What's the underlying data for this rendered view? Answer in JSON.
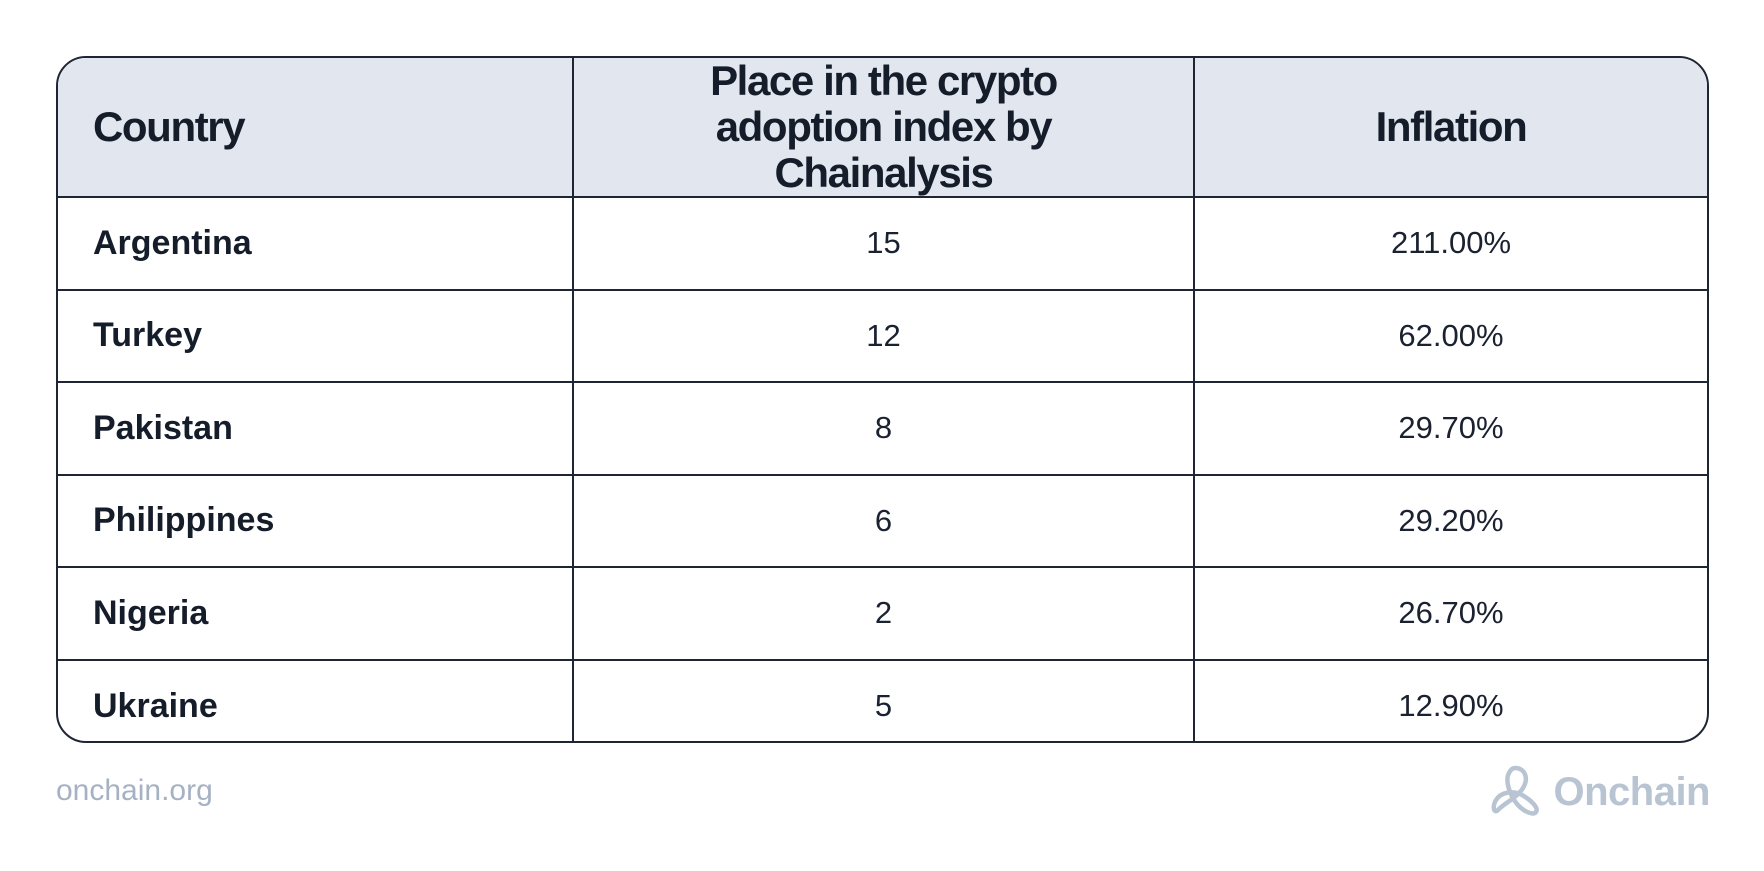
{
  "chart_data": {
    "type": "table",
    "columns": [
      "Country",
      "Place in the crypto adoption index by Chainalysis",
      "Inflation"
    ],
    "rows": [
      {
        "country": "Argentina",
        "place": "15",
        "inflation": "211.00%"
      },
      {
        "country": "Turkey",
        "place": "12",
        "inflation": "62.00%"
      },
      {
        "country": "Pakistan",
        "place": "8",
        "inflation": "29.70%"
      },
      {
        "country": "Philippines",
        "place": "6",
        "inflation": "29.20%"
      },
      {
        "country": "Nigeria",
        "place": "2",
        "inflation": "26.70%"
      },
      {
        "country": "Ukraine",
        "place": "5",
        "inflation": "12.90%"
      }
    ]
  },
  "footer": {
    "url": "onchain.org",
    "brand": "Onchain",
    "brand_icon": "onchain-knot-logo-icon"
  },
  "colors": {
    "header_bg": "#e2e7ef",
    "border": "#1e2636",
    "text": "#151c2a",
    "footer_text": "#a6b2c3",
    "logo": "#b9c4d3"
  }
}
